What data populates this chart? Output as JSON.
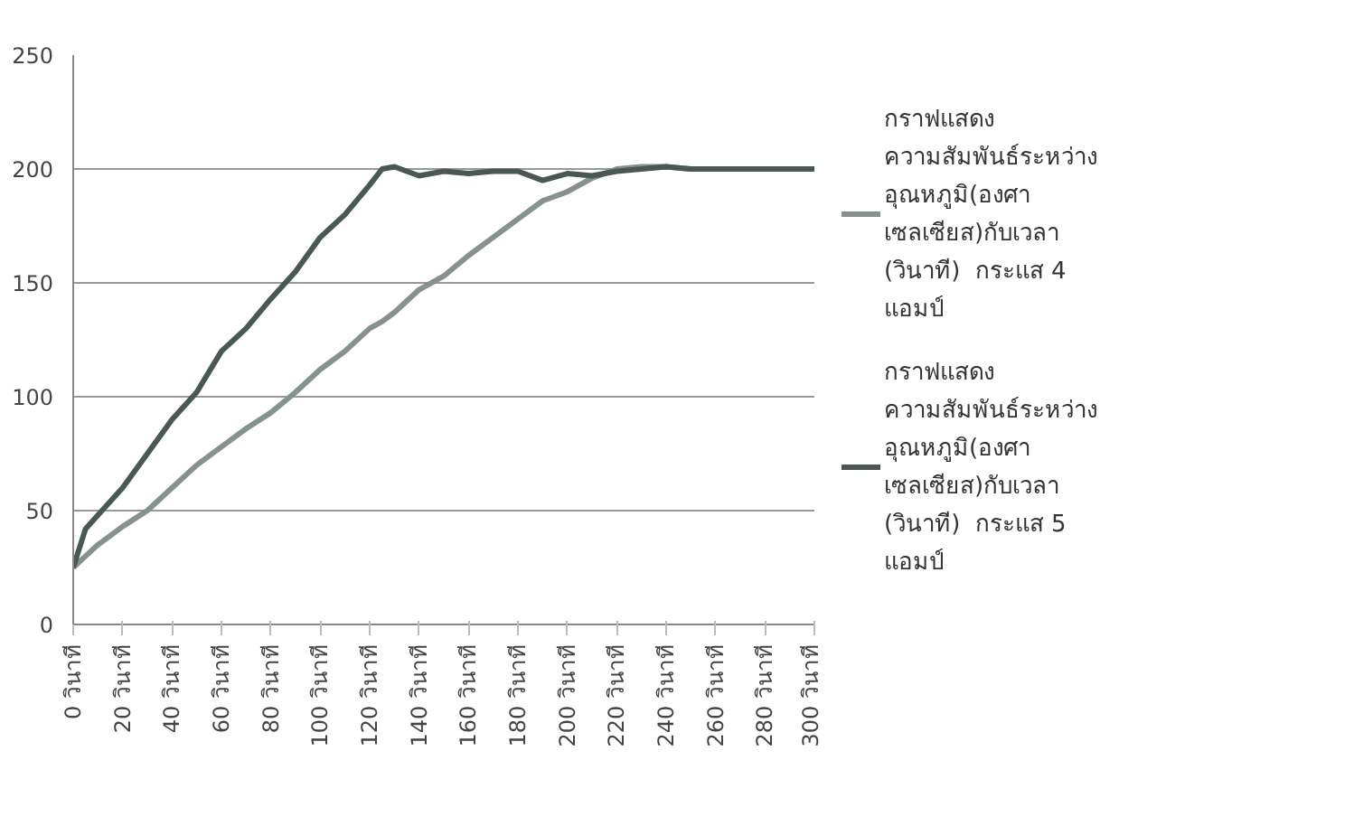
{
  "chart_data": {
    "type": "line",
    "x": [
      0,
      5,
      10,
      20,
      30,
      40,
      50,
      60,
      70,
      80,
      90,
      100,
      110,
      120,
      125,
      130,
      140,
      150,
      160,
      170,
      180,
      190,
      200,
      210,
      220,
      230,
      240,
      250,
      260,
      270,
      280,
      290,
      300
    ],
    "series": [
      {
        "name": "กราฟแสดง\nความสัมพันธ์ระหว่าง\nอุณหภูมิ(องศา\nเซลเซียส)กับเวลา\n(วินาที)  กระแส 4\nแอมป์",
        "color": "#86928c",
        "values": [
          25,
          30,
          35,
          43,
          50,
          60,
          70,
          78,
          86,
          93,
          102,
          112,
          120,
          130,
          133,
          137,
          147,
          153,
          162,
          170,
          178,
          186,
          190,
          196,
          200,
          201,
          201,
          200,
          200,
          200,
          200,
          200,
          200
        ]
      },
      {
        "name": "กราฟแสดง\nความสัมพันธ์ระหว่าง\nอุณหภูมิ(องศา\nเซลเซียส)กับเวลา\n(วินาที)  กระแส 5\nแอมป์",
        "color": "#4a5852",
        "values": [
          25,
          42,
          48,
          60,
          75,
          90,
          102,
          120,
          130,
          143,
          155,
          170,
          180,
          193,
          200,
          201,
          197,
          199,
          198,
          199,
          199,
          195,
          198,
          197,
          199,
          200,
          201,
          200,
          200,
          200,
          200,
          200,
          200
        ]
      }
    ],
    "xlim": [
      0,
      300
    ],
    "xticks": [
      {
        "value": 0,
        "label": "0 วินาที"
      },
      {
        "value": 20,
        "label": "20 วินาที"
      },
      {
        "value": 40,
        "label": "40 วินาที"
      },
      {
        "value": 60,
        "label": "60 วินาที"
      },
      {
        "value": 80,
        "label": "80 วินาที"
      },
      {
        "value": 100,
        "label": "100 วินาที"
      },
      {
        "value": 120,
        "label": "120 วินาที"
      },
      {
        "value": 140,
        "label": "140 วินาที"
      },
      {
        "value": 160,
        "label": "160 วินาที"
      },
      {
        "value": 180,
        "label": "180 วินาที"
      },
      {
        "value": 200,
        "label": "200 วินาที"
      },
      {
        "value": 220,
        "label": "220 วินาที"
      },
      {
        "value": 240,
        "label": "240 วินาที"
      },
      {
        "value": 260,
        "label": "260 วินาที"
      },
      {
        "value": 280,
        "label": "280 วินาที"
      },
      {
        "value": 300,
        "label": "300 วินาที"
      }
    ],
    "ylim": [
      0,
      250
    ],
    "yticks": [
      0,
      50,
      100,
      150,
      200,
      250
    ],
    "grid": "y",
    "legend": "right",
    "marker": "none",
    "line_style": "solid"
  }
}
